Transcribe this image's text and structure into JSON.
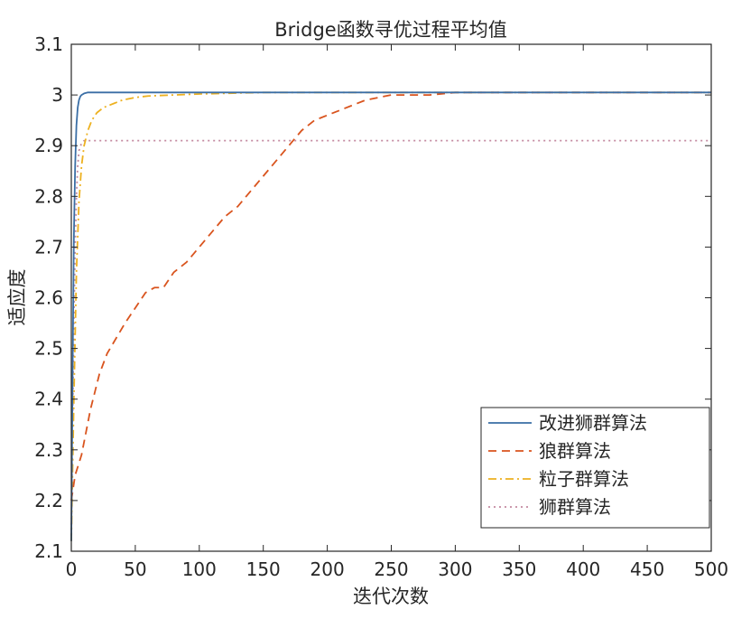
{
  "chart_data": {
    "type": "line",
    "title": "Bridge函数寻优过程平均值",
    "xlabel": "迭代次数",
    "ylabel": "适应度",
    "xlim": [
      0,
      500
    ],
    "ylim": [
      2.1,
      3.1
    ],
    "xticks": [
      "0",
      "50",
      "100",
      "150",
      "200",
      "250",
      "300",
      "350",
      "400",
      "450",
      "500"
    ],
    "yticks": [
      "2.1",
      "2.2",
      "2.3",
      "2.4",
      "2.5",
      "2.6",
      "2.7",
      "2.8",
      "2.9",
      "3",
      "3.1"
    ],
    "grid": false,
    "legend_position": "bottom-right",
    "series": [
      {
        "name": "改进狮群算法",
        "color": "#3a6ea5",
        "style": "solid",
        "x": [
          0,
          1,
          2,
          3,
          4,
          5,
          6,
          7,
          8,
          10,
          13,
          20,
          40,
          100,
          500
        ],
        "y": [
          2.12,
          2.45,
          2.72,
          2.86,
          2.94,
          2.975,
          2.99,
          2.997,
          3.0,
          3.003,
          3.005,
          3.005,
          3.005,
          3.005,
          3.005
        ]
      },
      {
        "name": "狼群算法",
        "color": "#d9541e",
        "style": "dashed",
        "x": [
          0,
          3,
          8,
          15,
          22,
          28,
          35,
          42,
          50,
          58,
          65,
          72,
          80,
          90,
          100,
          110,
          120,
          130,
          140,
          150,
          160,
          170,
          180,
          190,
          200,
          210,
          220,
          230,
          240,
          250,
          260,
          280,
          300,
          330,
          400,
          500
        ],
        "y": [
          2.2,
          2.25,
          2.29,
          2.38,
          2.45,
          2.49,
          2.52,
          2.55,
          2.58,
          2.61,
          2.62,
          2.62,
          2.65,
          2.67,
          2.7,
          2.73,
          2.76,
          2.78,
          2.81,
          2.84,
          2.87,
          2.9,
          2.93,
          2.95,
          2.96,
          2.97,
          2.98,
          2.99,
          2.995,
          3.0,
          3.0,
          3.0,
          3.005,
          3.005,
          3.005,
          3.005
        ]
      },
      {
        "name": "粒子群算法",
        "color": "#edb120",
        "style": "dashdot",
        "x": [
          0,
          2,
          4,
          6,
          8,
          10,
          13,
          16,
          20,
          25,
          30,
          40,
          50,
          60,
          80,
          100,
          150,
          500
        ],
        "y": [
          2.12,
          2.4,
          2.65,
          2.79,
          2.86,
          2.9,
          2.93,
          2.95,
          2.965,
          2.975,
          2.98,
          2.99,
          2.995,
          2.998,
          3.0,
          3.002,
          3.005,
          3.005
        ]
      },
      {
        "name": "狮群算法",
        "color": "#c48aa0",
        "style": "dotted",
        "x": [
          0,
          1,
          2,
          3,
          4,
          5,
          6,
          8,
          10,
          500
        ],
        "y": [
          2.12,
          2.35,
          2.55,
          2.7,
          2.8,
          2.86,
          2.89,
          2.905,
          2.91,
          2.91
        ]
      }
    ]
  }
}
